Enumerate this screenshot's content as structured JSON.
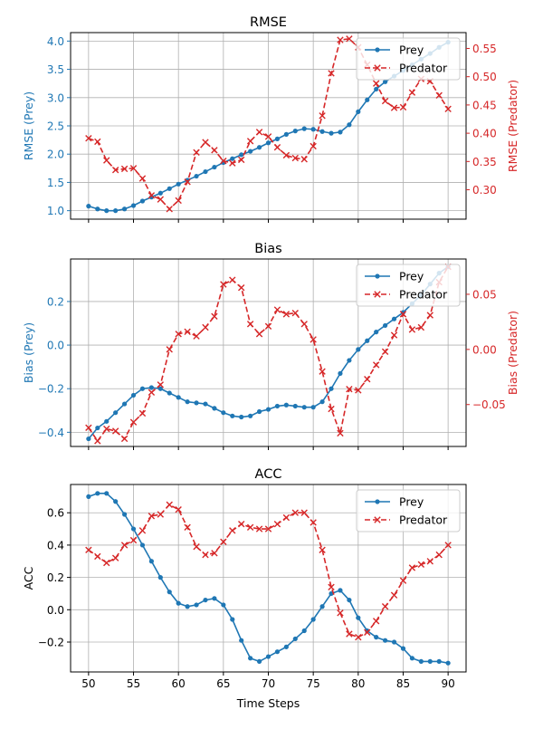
{
  "chart_data": [
    {
      "type": "line",
      "title": "RMSE",
      "xlabel": "",
      "ylabel_left": "RMSE (Prey)",
      "ylabel_right": "RMSE (Predator)",
      "legend_position": "top-right",
      "grid": true,
      "x_ticks": [
        50,
        55,
        60,
        65,
        70,
        75,
        80,
        85,
        90
      ],
      "y_left_ticks": [
        "1.0",
        "1.5",
        "2.0",
        "2.5",
        "3.0",
        "3.5",
        "4.0"
      ],
      "y_right_ticks": [
        "0.30",
        "0.35",
        "0.40",
        "0.45",
        "0.50",
        "0.55"
      ],
      "xlim": [
        48.0,
        92.0
      ],
      "ylim_left": [
        0.85,
        4.15
      ],
      "ylim_right": [
        0.248,
        0.578
      ],
      "series": [
        {
          "name": "Prey",
          "axis": "left",
          "color": "#1f77b4",
          "style": "solid",
          "marker": "dot",
          "x": [
            50,
            51,
            52,
            53,
            54,
            55,
            56,
            57,
            58,
            59,
            60,
            61,
            62,
            63,
            64,
            65,
            66,
            67,
            68,
            69,
            70,
            71,
            72,
            73,
            74,
            75,
            76,
            77,
            78,
            79,
            80,
            81,
            82,
            83,
            84,
            85,
            86,
            87,
            88,
            89,
            90
          ],
          "values": [
            1.08,
            1.03,
            1.0,
            1.0,
            1.03,
            1.09,
            1.17,
            1.24,
            1.31,
            1.39,
            1.47,
            1.54,
            1.61,
            1.69,
            1.77,
            1.85,
            1.92,
            1.99,
            2.05,
            2.12,
            2.2,
            2.27,
            2.35,
            2.41,
            2.45,
            2.44,
            2.4,
            2.37,
            2.39,
            2.52,
            2.75,
            2.96,
            3.15,
            3.28,
            3.38,
            3.48,
            3.58,
            3.68,
            3.78,
            3.89,
            3.98
          ]
        },
        {
          "name": "Predator",
          "axis": "right",
          "color": "#d62728",
          "style": "dashed",
          "marker": "x",
          "x": [
            50,
            51,
            52,
            53,
            54,
            55,
            56,
            57,
            58,
            59,
            60,
            61,
            62,
            63,
            64,
            65,
            66,
            67,
            68,
            69,
            70,
            71,
            72,
            73,
            74,
            75,
            76,
            77,
            78,
            79,
            80,
            81,
            82,
            83,
            84,
            85,
            86,
            87,
            88,
            89,
            90
          ],
          "values": [
            0.391,
            0.385,
            0.352,
            0.335,
            0.337,
            0.338,
            0.32,
            0.29,
            0.283,
            0.266,
            0.281,
            0.314,
            0.366,
            0.384,
            0.37,
            0.351,
            0.347,
            0.353,
            0.386,
            0.402,
            0.394,
            0.375,
            0.361,
            0.356,
            0.354,
            0.377,
            0.431,
            0.506,
            0.565,
            0.567,
            0.552,
            0.521,
            0.488,
            0.457,
            0.445,
            0.446,
            0.472,
            0.496,
            0.492,
            0.467,
            0.443
          ]
        }
      ]
    },
    {
      "type": "line",
      "title": "Bias",
      "xlabel": "",
      "ylabel_left": "Bias (Prey)",
      "ylabel_right": "Bias (Predator)",
      "legend_position": "top-right",
      "grid": true,
      "x_ticks": [
        50,
        55,
        60,
        65,
        70,
        75,
        80,
        85,
        90
      ],
      "y_left_ticks": [
        "−0.4",
        "−0.2",
        "0.0",
        "0.2"
      ],
      "y_right_ticks": [
        "−0.05",
        "0.00",
        "0.05"
      ],
      "xlim": [
        48.0,
        92.0
      ],
      "ylim_left": [
        -0.465,
        0.395
      ],
      "ylim_right": [
        -0.088,
        0.082
      ],
      "series": [
        {
          "name": "Prey",
          "axis": "left",
          "color": "#1f77b4",
          "style": "solid",
          "marker": "dot",
          "x": [
            50,
            51,
            52,
            53,
            54,
            55,
            56,
            57,
            58,
            59,
            60,
            61,
            62,
            63,
            64,
            65,
            66,
            67,
            68,
            69,
            70,
            71,
            72,
            73,
            74,
            75,
            76,
            77,
            78,
            79,
            80,
            81,
            82,
            83,
            84,
            85,
            86,
            87,
            88,
            89,
            90
          ],
          "values": [
            -0.43,
            -0.38,
            -0.35,
            -0.31,
            -0.27,
            -0.23,
            -0.2,
            -0.195,
            -0.2,
            -0.22,
            -0.24,
            -0.26,
            -0.265,
            -0.27,
            -0.29,
            -0.31,
            -0.325,
            -0.33,
            -0.325,
            -0.305,
            -0.295,
            -0.28,
            -0.275,
            -0.28,
            -0.285,
            -0.285,
            -0.26,
            -0.2,
            -0.13,
            -0.07,
            -0.02,
            0.02,
            0.06,
            0.09,
            0.12,
            0.15,
            0.19,
            0.23,
            0.28,
            0.33,
            0.36
          ]
        },
        {
          "name": "Predator",
          "axis": "right",
          "color": "#d62728",
          "style": "dashed",
          "marker": "x",
          "x": [
            50,
            51,
            52,
            53,
            54,
            55,
            56,
            57,
            58,
            59,
            60,
            61,
            62,
            63,
            64,
            65,
            66,
            67,
            68,
            69,
            70,
            71,
            72,
            73,
            74,
            75,
            76,
            77,
            78,
            79,
            80,
            81,
            82,
            83,
            84,
            85,
            86,
            87,
            88,
            89,
            90
          ],
          "values": [
            -0.071,
            -0.083,
            -0.072,
            -0.074,
            -0.081,
            -0.066,
            -0.058,
            -0.039,
            -0.032,
            0.0,
            0.014,
            0.016,
            0.012,
            0.02,
            0.03,
            0.059,
            0.063,
            0.056,
            0.023,
            0.014,
            0.021,
            0.036,
            0.032,
            0.033,
            0.023,
            0.009,
            -0.02,
            -0.054,
            -0.076,
            -0.036,
            -0.037,
            -0.027,
            -0.014,
            -0.002,
            0.013,
            0.032,
            0.018,
            0.02,
            0.031,
            0.061,
            0.075
          ]
        }
      ]
    },
    {
      "type": "line",
      "title": "ACC",
      "xlabel": "Time Steps",
      "ylabel_left": "ACC",
      "ylabel_right": "",
      "legend_position": "top-right",
      "grid": true,
      "x_ticks": [
        50,
        55,
        60,
        65,
        70,
        75,
        80,
        85,
        90
      ],
      "y_left_ticks": [
        "−0.2",
        "0.0",
        "0.2",
        "0.4",
        "0.6"
      ],
      "y_right_ticks": [],
      "xlim": [
        48.0,
        92.0
      ],
      "ylim_left": [
        -0.385,
        0.775
      ],
      "series": [
        {
          "name": "Prey",
          "axis": "left",
          "color": "#1f77b4",
          "style": "solid",
          "marker": "dot",
          "x": [
            50,
            51,
            52,
            53,
            54,
            55,
            56,
            57,
            58,
            59,
            60,
            61,
            62,
            63,
            64,
            65,
            66,
            67,
            68,
            69,
            70,
            71,
            72,
            73,
            74,
            75,
            76,
            77,
            78,
            79,
            80,
            81,
            82,
            83,
            84,
            85,
            86,
            87,
            88,
            89,
            90
          ],
          "values": [
            0.7,
            0.72,
            0.72,
            0.67,
            0.59,
            0.5,
            0.4,
            0.3,
            0.2,
            0.11,
            0.04,
            0.02,
            0.03,
            0.06,
            0.07,
            0.03,
            -0.06,
            -0.19,
            -0.3,
            -0.32,
            -0.29,
            -0.26,
            -0.23,
            -0.18,
            -0.13,
            -0.06,
            0.02,
            0.1,
            0.12,
            0.06,
            -0.05,
            -0.13,
            -0.17,
            -0.19,
            -0.2,
            -0.24,
            -0.3,
            -0.32,
            -0.32,
            -0.32,
            -0.33
          ]
        },
        {
          "name": "Predator",
          "axis": "left",
          "color": "#d62728",
          "style": "dashed",
          "marker": "x",
          "x": [
            50,
            51,
            52,
            53,
            54,
            55,
            56,
            57,
            58,
            59,
            60,
            61,
            62,
            63,
            64,
            65,
            66,
            67,
            68,
            69,
            70,
            71,
            72,
            73,
            74,
            75,
            76,
            77,
            78,
            79,
            80,
            81,
            82,
            83,
            84,
            85,
            86,
            87,
            88,
            89,
            90
          ],
          "values": [
            0.37,
            0.33,
            0.29,
            0.32,
            0.4,
            0.43,
            0.49,
            0.58,
            0.59,
            0.65,
            0.62,
            0.51,
            0.39,
            0.34,
            0.35,
            0.42,
            0.49,
            0.53,
            0.51,
            0.5,
            0.5,
            0.53,
            0.57,
            0.6,
            0.6,
            0.54,
            0.37,
            0.14,
            -0.02,
            -0.15,
            -0.17,
            -0.14,
            -0.07,
            0.02,
            0.09,
            0.18,
            0.26,
            0.28,
            0.3,
            0.34,
            0.4
          ]
        }
      ]
    }
  ]
}
